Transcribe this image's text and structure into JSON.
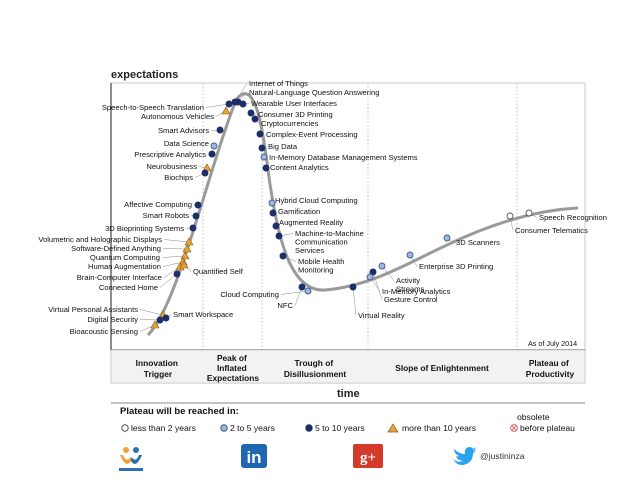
{
  "y_axis_label": "expectations",
  "x_axis_label": "time",
  "as_of": "As of July 2014",
  "phases": [
    {
      "lines": [
        "Innovation",
        "Trigger"
      ]
    },
    {
      "lines": [
        "Peak of",
        "Inflated",
        "Expectations"
      ]
    },
    {
      "lines": [
        "Trough of",
        "Disillusionment"
      ]
    },
    {
      "lines": [
        "Slope of Enlightenment"
      ]
    },
    {
      "lines": [
        "Plateau of",
        "Productivity"
      ]
    }
  ],
  "technologies": [
    {
      "name": "Internet of Things",
      "type": "5-10"
    },
    {
      "name": "Natural-Language Question Answering",
      "type": "5-10"
    },
    {
      "name": "Wearable User Interfaces",
      "type": "5-10"
    },
    {
      "name": "Consumer 3D Printing",
      "type": "5-10"
    },
    {
      "name": "Cryptocurrencies",
      "type": "5-10"
    },
    {
      "name": "Complex-Event Processing",
      "type": "5-10"
    },
    {
      "name": "Big Data",
      "type": "5-10"
    },
    {
      "name": "In-Memory Database Management Systems",
      "type": "2-5"
    },
    {
      "name": "Content Analytics",
      "type": "5-10"
    },
    {
      "name": "Speech-to-Speech Translation",
      "type": "5-10"
    },
    {
      "name": "Autonomous Vehicles",
      "type": "more10"
    },
    {
      "name": "Smart Advisors",
      "type": "5-10"
    },
    {
      "name": "Data Science",
      "type": "2-5"
    },
    {
      "name": "Prescriptive Analytics",
      "type": "5-10"
    },
    {
      "name": "Neurobusiness",
      "type": "more10"
    },
    {
      "name": "Biochips",
      "type": "5-10"
    },
    {
      "name": "Affective Computing",
      "type": "5-10"
    },
    {
      "name": "Smart Robots",
      "type": "5-10"
    },
    {
      "name": "3D Bioprinting Systems",
      "type": "5-10"
    },
    {
      "name": "Volumetric and Holographic Displays",
      "type": "more10"
    },
    {
      "name": "Software-Defined Anything",
      "type": "more10"
    },
    {
      "name": "Quantum Computing",
      "type": "more10"
    },
    {
      "name": "Human Augmentation",
      "type": "more10"
    },
    {
      "name": "Brain-Computer Interface",
      "type": "more10"
    },
    {
      "name": "Connected Home",
      "type": "5-10"
    },
    {
      "name": "Quantified Self",
      "type": "more10"
    },
    {
      "name": "Virtual Personal Assistants",
      "type": "more10"
    },
    {
      "name": "Digital Security",
      "type": "5-10"
    },
    {
      "name": "Bioacoustic Sensing",
      "type": "more10"
    },
    {
      "name": "Smart Workspace",
      "type": "5-10"
    },
    {
      "name": "Hybrid Cloud Computing",
      "type": "2-5"
    },
    {
      "name": "Gamification",
      "type": "5-10"
    },
    {
      "name": "Augmented Reality",
      "type": "5-10"
    },
    {
      "name": "Machine-to-Machine Communication Services",
      "type": "5-10"
    },
    {
      "name": "Mobile Health Monitoring",
      "type": "5-10"
    },
    {
      "name": "Cloud Computing",
      "type": "2-5"
    },
    {
      "name": "NFC",
      "type": "5-10"
    },
    {
      "name": "Virtual Reality",
      "type": "5-10"
    },
    {
      "name": "Gesture Control",
      "type": "5-10"
    },
    {
      "name": "In-Memory Analytics",
      "type": "2-5"
    },
    {
      "name": "Activity Streams",
      "type": "2-5"
    },
    {
      "name": "Enterprise 3D Printing",
      "type": "2-5"
    },
    {
      "name": "3D Scanners",
      "type": "2-5"
    },
    {
      "name": "Consumer Telematics",
      "type": "less2"
    },
    {
      "name": "Speech Recognition",
      "type": "less2"
    }
  ],
  "legend": {
    "title": "Plateau will be reached in:",
    "items": [
      {
        "key": "less2",
        "label": "less than 2 years"
      },
      {
        "key": "2-5",
        "label": "2 to 5 years"
      },
      {
        "key": "5-10",
        "label": "5 to 10 years"
      },
      {
        "key": "more10",
        "label": "more than 10 years"
      },
      {
        "key": "obsolete",
        "label": "obsolete before plateau"
      }
    ],
    "obsolete_line1": "obsolete",
    "obsolete_line2": "before plateau"
  },
  "footer": {
    "icons": [
      "workplace-logo-icon",
      "linkedin-icon",
      "google-plus-icon",
      "twitter-icon"
    ],
    "linkedin_text": "in",
    "gplus_text": "g+",
    "handle": "@justininza"
  },
  "colors": {
    "dark_dot": "#1c2f6b",
    "light_dot": "#9db8df",
    "triangle": "#e6a23c",
    "curve": "#9a9a9a",
    "linkedin": "#1f67b0",
    "gplus": "#d23a2a",
    "twitter": "#2aa3ef"
  }
}
